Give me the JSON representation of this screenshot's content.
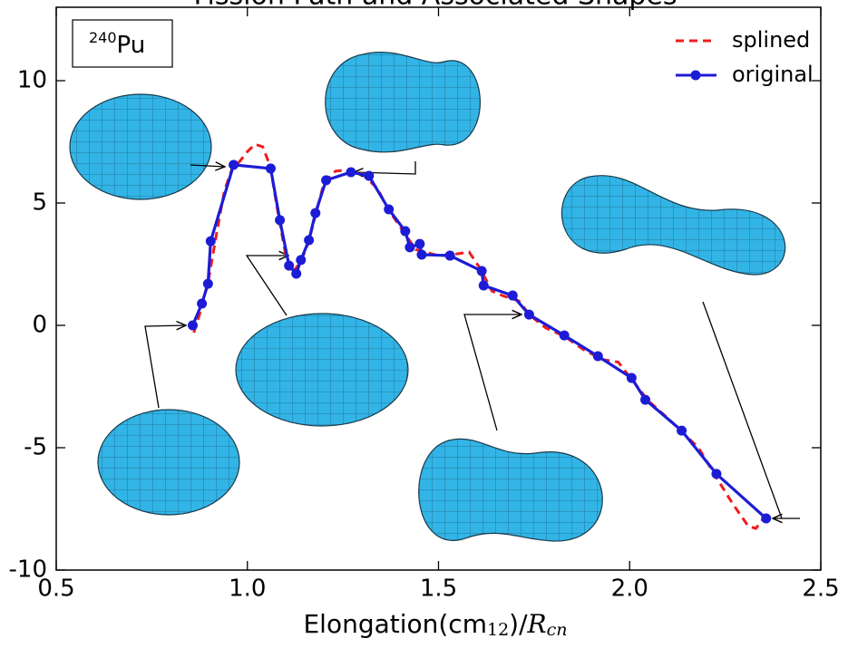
{
  "chart_data": {
    "type": "line",
    "title": "Fission Path and Associated Shapes",
    "xlabel": {
      "text": "Elongation(cm",
      "sub": "12",
      "after": ")/",
      "italic": "R",
      "italic_sub": "cn"
    },
    "annotation": {
      "superscript": "240",
      "text": "Pu"
    },
    "xlim": [
      0.5,
      2.5
    ],
    "ylim": [
      -10,
      13
    ],
    "xticks": [
      0.5,
      {
        "value": 1,
        "label": "1.0"
      },
      1.5,
      {
        "value": 2,
        "label": "2.0"
      },
      2.5
    ],
    "yticks": [
      -10,
      -5,
      0,
      5,
      10
    ],
    "legend": "upper right",
    "series": [
      {
        "name": "splined",
        "color": "#ee1c1c",
        "style": "dashed",
        "x": [
          0.86,
          0.88,
          0.9,
          0.92,
          0.94,
          0.96,
          0.98,
          1.0,
          1.02,
          1.04,
          1.06,
          1.08,
          1.1,
          1.12,
          1.14,
          1.16,
          1.18,
          1.2,
          1.23,
          1.26,
          1.3,
          1.34,
          1.37,
          1.41,
          1.44,
          1.5,
          1.54,
          1.58,
          1.61,
          1.64,
          1.67,
          1.71,
          1.74,
          1.78,
          1.83,
          1.88,
          1.93,
          1.97,
          2.01,
          2.05,
          2.1,
          2.14,
          2.18,
          2.23,
          2.27,
          2.31,
          2.33,
          2.35
        ],
        "values": [
          -0.3,
          0.7,
          2.0,
          3.8,
          5.5,
          6.4,
          6.7,
          7.1,
          7.4,
          7.3,
          6.5,
          4.6,
          2.9,
          2.2,
          2.6,
          3.4,
          4.6,
          5.8,
          6.3,
          6.35,
          6.2,
          5.6,
          4.7,
          3.8,
          3.1,
          2.85,
          2.9,
          3.0,
          2.3,
          1.4,
          1.2,
          1.0,
          0.4,
          -0.1,
          -0.45,
          -1.0,
          -1.4,
          -1.5,
          -2.3,
          -3.1,
          -3.8,
          -4.4,
          -5.0,
          -6.3,
          -7.3,
          -8.2,
          -8.3,
          -7.9
        ]
      },
      {
        "name": "original",
        "color": "#1c1cd6",
        "style": "solid-marker",
        "x": [
          0.857,
          0.881,
          0.897,
          0.904,
          0.964,
          1.061,
          1.085,
          1.109,
          1.128,
          1.14,
          1.161,
          1.178,
          1.206,
          1.271,
          1.318,
          1.37,
          1.413,
          1.425,
          1.451,
          1.456,
          1.53,
          1.613,
          1.618,
          1.694,
          1.737,
          1.829,
          1.917,
          2.005,
          2.041,
          2.136,
          2.227,
          2.357
        ],
        "values": [
          0,
          0.89,
          1.7,
          3.44,
          6.56,
          6.41,
          4.3,
          2.44,
          2.11,
          2.67,
          3.48,
          4.59,
          5.93,
          6.26,
          6.11,
          4.74,
          3.85,
          3.19,
          3.33,
          2.89,
          2.85,
          2.22,
          1.63,
          1.22,
          0.44,
          -0.41,
          -1.26,
          -2.15,
          -3.04,
          -4.3,
          -6.07,
          -7.89
        ]
      }
    ]
  }
}
